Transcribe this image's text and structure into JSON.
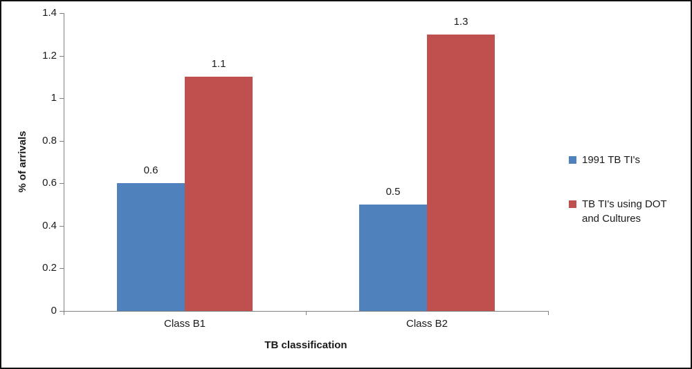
{
  "chart_data": {
    "type": "bar",
    "title": "",
    "xlabel": "TB classification",
    "ylabel": "% of arrivals",
    "categories": [
      "Class B1",
      "Class B2"
    ],
    "series": [
      {
        "name": "1991 TB TI's",
        "color": "#4f81bd",
        "values": [
          0.6,
          0.5
        ],
        "labels": [
          "0.6",
          "0.5"
        ]
      },
      {
        "name": "TB TI's using DOT and Cultures",
        "color": "#c0504d",
        "values": [
          1.1,
          1.3
        ],
        "labels": [
          "1.1",
          "1.3"
        ]
      }
    ],
    "ylim": [
      0,
      1.4
    ],
    "yticks": [
      "0",
      "0.2",
      "0.4",
      "0.6",
      "0.8",
      "1",
      "1.2",
      "1.4"
    ],
    "grid": false,
    "legend_position": "right",
    "legend_items": [
      {
        "lines": [
          "1991 TB TI's"
        ]
      },
      {
        "lines": [
          "TB TI's using DOT",
          "and Cultures"
        ]
      }
    ]
  }
}
